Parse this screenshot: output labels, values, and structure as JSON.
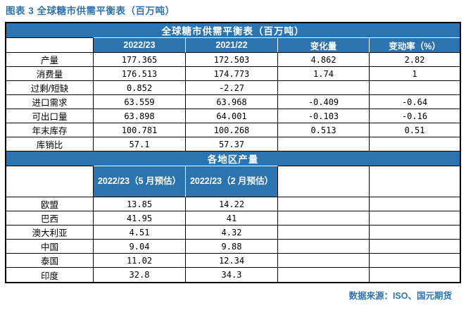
{
  "title": "图表 3 全球糖市供需平衡表（百万吨）",
  "colors": {
    "banner_blue": "#2C73B2",
    "title_blue": "#2E74B5",
    "border_black": "#000000",
    "header_text_white": "#FFFFFF"
  },
  "table1": {
    "banner": "全球糖市供需平衡表（百万吨）",
    "columns": [
      "2022/23",
      "2021/22",
      "变化量",
      "变动率（%）"
    ],
    "rows": [
      {
        "label": "产量",
        "values": [
          "177.365",
          "172.503",
          "4.862",
          "2.82"
        ]
      },
      {
        "label": "消费量",
        "values": [
          "176.513",
          "174.773",
          "1.74",
          "1"
        ]
      },
      {
        "label": "过剩/短缺",
        "values": [
          "0.852",
          "-2.27",
          "",
          ""
        ]
      },
      {
        "label": "进口需求",
        "values": [
          "63.559",
          "63.968",
          "-0.409",
          "-0.64"
        ]
      },
      {
        "label": "可出口量",
        "values": [
          "63.898",
          "64.001",
          "-0.103",
          "-0.16"
        ]
      },
      {
        "label": "年末库存",
        "values": [
          "100.781",
          "100.268",
          "0.513",
          "0.51"
        ]
      },
      {
        "label": "库销比",
        "values": [
          "57.1",
          "57.37",
          "",
          ""
        ]
      }
    ]
  },
  "table2": {
    "banner": "各地区产量",
    "columns": [
      "2022/23（5 月预估）",
      "2022/23（2 月预估）"
    ],
    "rows": [
      {
        "label": "欧盟",
        "values": [
          "13.85",
          "14.22",
          "",
          ""
        ]
      },
      {
        "label": "巴西",
        "values": [
          "41.95",
          "41",
          "",
          ""
        ]
      },
      {
        "label": "澳大利亚",
        "values": [
          "4.51",
          "4.32",
          "",
          ""
        ]
      },
      {
        "label": "中国",
        "values": [
          "9.04",
          "9.88",
          "",
          ""
        ]
      },
      {
        "label": "泰国",
        "values": [
          "11.02",
          "12.34",
          "",
          ""
        ]
      },
      {
        "label": "印度",
        "values": [
          "32.8",
          "34.3",
          "",
          ""
        ]
      }
    ]
  },
  "footer": {
    "source": "数据来源：ISO、国元期货"
  }
}
